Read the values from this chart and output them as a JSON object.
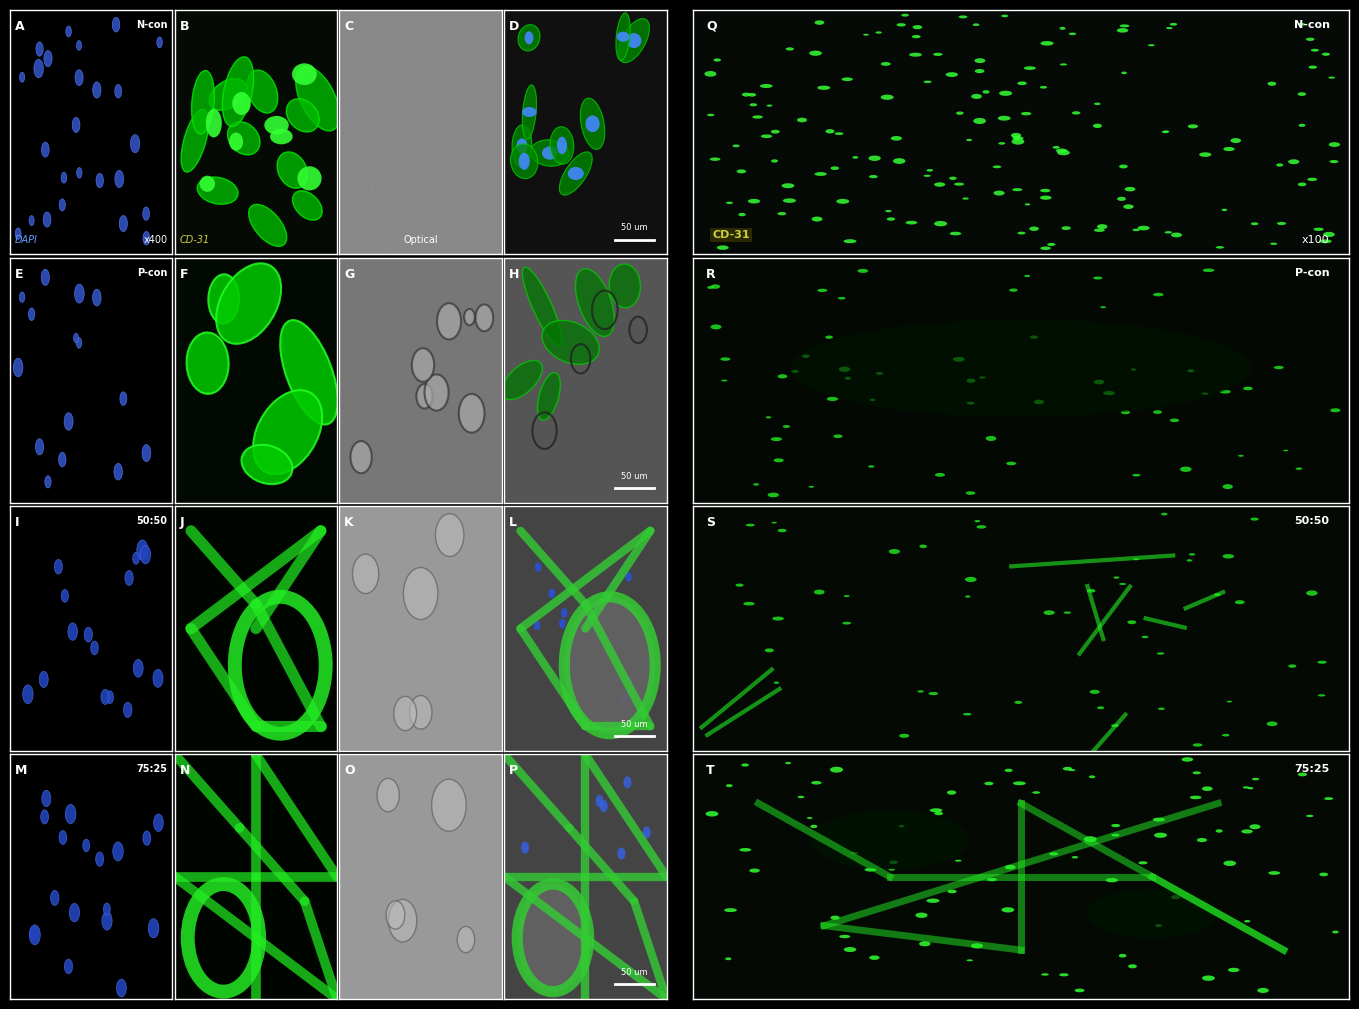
{
  "panels_left": [
    {
      "label": "A",
      "top_right": "N-con",
      "bottom_left": "DAPI",
      "bottom_right": "x400",
      "color_type": "blue_dapi"
    },
    {
      "label": "B",
      "bottom_left": "CD-31",
      "color_type": "green_cd31_dense"
    },
    {
      "label": "C",
      "bottom_center": "Optical",
      "color_type": "optical_gray"
    },
    {
      "label": "D",
      "top_left": "",
      "bottom_right_scale": "50 um",
      "top_left_label": "D",
      "color_type": "merge_blue_green"
    },
    {
      "label": "E",
      "top_right": "P-con",
      "color_type": "blue_dapi_sparse"
    },
    {
      "label": "F",
      "color_type": "green_cd31_bright"
    },
    {
      "label": "G",
      "color_type": "optical_gray_circles"
    },
    {
      "label": "H",
      "bottom_right_scale": "50 um",
      "color_type": "merge_green_gray"
    },
    {
      "label": "I",
      "top_right": "50:50",
      "color_type": "blue_dapi_clusters"
    },
    {
      "label": "J",
      "color_type": "green_network"
    },
    {
      "label": "K",
      "color_type": "optical_gray_network"
    },
    {
      "label": "L",
      "bottom_right_scale": "50 um",
      "color_type": "merge_network"
    },
    {
      "label": "M",
      "top_right": "75:25",
      "color_type": "blue_dapi_clusters2"
    },
    {
      "label": "N",
      "color_type": "green_network2"
    },
    {
      "label": "O",
      "color_type": "optical_gray_network2"
    },
    {
      "label": "P",
      "bottom_right_scale": "50 um",
      "color_type": "merge_network2"
    }
  ],
  "panels_right": [
    {
      "label": "Q",
      "top_right": "N-con",
      "bottom_left": "CD-31",
      "bottom_right": "x100",
      "color_type": "green_dots_many"
    },
    {
      "label": "R",
      "top_right": "P-con",
      "color_type": "green_dots_sparse"
    },
    {
      "label": "S",
      "top_right": "50:50",
      "color_type": "green_tubes_forming"
    },
    {
      "label": "T",
      "top_right": "75:25",
      "color_type": "green_tubes_full"
    }
  ],
  "bg_color": "#000000",
  "border_color": "#ffffff",
  "text_color": "#ffffff",
  "label_color_dapi": "#6699ff",
  "label_color_cd31": "#cccc44",
  "label_color_optical": "#ffffff",
  "scale_bar_color": "#ffffff"
}
